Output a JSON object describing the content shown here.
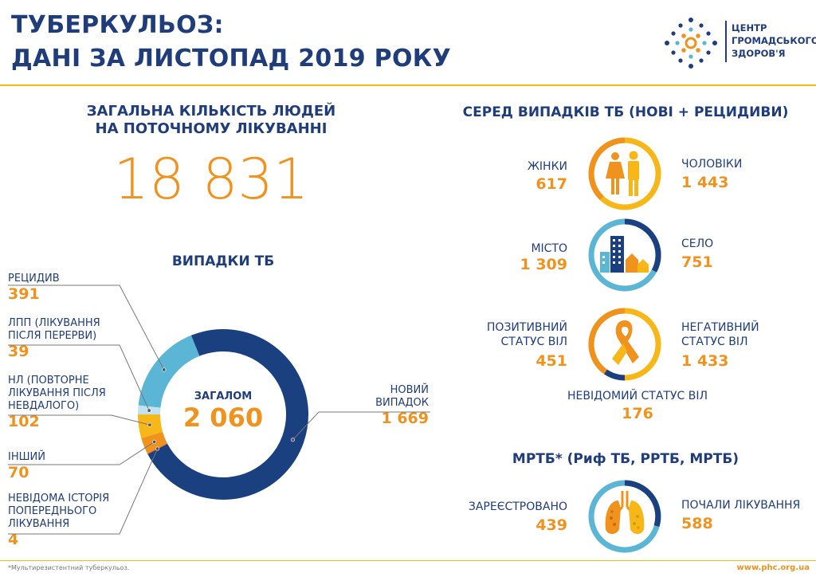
{
  "header": {
    "title_line1": "ТУБЕРКУЛЬОЗ:",
    "title_line2": "ДАНІ ЗА ЛИСТОПАД 2019 РОКУ",
    "logo_line1": "ЦЕНТР",
    "logo_line2": "ГРОМАДСЬКОГО",
    "logo_line3": "ЗДОРОВ'Я"
  },
  "total_on_treatment": {
    "heading_line1": "ЗАГАЛЬНА КІЛЬКІСТЬ ЛЮДЕЙ",
    "heading_line2": "НА ПОТОЧНОМУ ЛІКУВАННІ",
    "value": "18 831"
  },
  "tb_cases": {
    "heading": "ВИПАДКИ ТБ",
    "total_label": "ЗАГАЛОМ",
    "total_value": "2 060",
    "categories": [
      {
        "label_lines": [
          "РЕЦИДИВ"
        ],
        "value": "391"
      },
      {
        "label_lines": [
          "ЛПП (ЛІКУВАННЯ",
          "ПІСЛЯ ПЕРЕРВИ)"
        ],
        "value": "39"
      },
      {
        "label_lines": [
          "НЛ (ПОВТОРНЕ",
          "ЛІКУВАННЯ ПІСЛЯ",
          "НЕВДАЛОГО)"
        ],
        "value": "102"
      },
      {
        "label_lines": [
          "ІНШИЙ"
        ],
        "value": "70"
      },
      {
        "label_lines": [
          "НЕВІДОМА ІСТОРІЯ",
          "ПОПЕРЕДНЬОГО",
          "ЛІКУВАННЯ"
        ],
        "value": "4"
      },
      {
        "label_lines": [
          "НОВИЙ",
          "ВИПАДОК"
        ],
        "value": "1 669"
      }
    ]
  },
  "chart_data": {
    "type": "pie",
    "categories": [
      "РЕЦИДИВ",
      "ЛПП (ЛІКУВАННЯ ПІСЛЯ ПЕРЕРВИ)",
      "НЛ (ПОВТОРНЕ ЛІКУВАННЯ ПІСЛЯ НЕВДАЛОГО)",
      "ІНШИЙ",
      "НЕВІДОМА ІСТОРІЯ ПОПЕРЕДНЬОГО ЛІКУВАННЯ",
      "НОВИЙ ВИПАДОК"
    ],
    "values": [
      391,
      39,
      102,
      70,
      4,
      1669
    ],
    "colors": [
      "#5bb5d5",
      "#bfe3f0",
      "#f7b719",
      "#f0931e",
      "#e55a1e",
      "#1a4080"
    ],
    "title": "ВИПАДКИ ТБ",
    "center_label": "ЗАГАЛОМ",
    "total": 2060
  },
  "among_cases": {
    "heading": "СЕРЕД ВИПАДКІВ ТБ (НОВІ + РЕЦИДИВИ)",
    "women_label": "ЖІНКИ",
    "women_value": "617",
    "men_label": "ЧОЛОВІКИ",
    "men_value": "1 443",
    "city_label": "МІСТО",
    "city_value": "1 309",
    "village_label": "СЕЛО",
    "village_value": "751",
    "hiv_pos_line1": "ПОЗИТИВНИЙ",
    "hiv_pos_line2": "СТАТУС ВІЛ",
    "hiv_pos_value": "451",
    "hiv_neg_line1": "НЕГАТИВНИЙ",
    "hiv_neg_line2": "СТАТУС  ВІЛ",
    "hiv_neg_value": "1 433",
    "hiv_unknown_label": "НЕВІДОМИЙ СТАТУС ВІЛ",
    "hiv_unknown_value": "176"
  },
  "mdr_tb": {
    "heading": "МРТБ* (Риф ТБ, РРТБ, МРТБ)",
    "registered_label": "ЗАРЕЄСТРОВАНО",
    "registered_value": "439",
    "started_label": "ПОЧАЛИ ЛІКУВАННЯ",
    "started_value": "588"
  },
  "footer": {
    "footnote": "*Мультирезистентний туберкульоз.",
    "website": "www.phc.org.ua"
  },
  "colors": {
    "navy": "#1f3d7a",
    "dark_blue": "#1a4080",
    "light_blue": "#5bb5d5",
    "orange": "#f0931e",
    "yellow": "#f7b719"
  }
}
